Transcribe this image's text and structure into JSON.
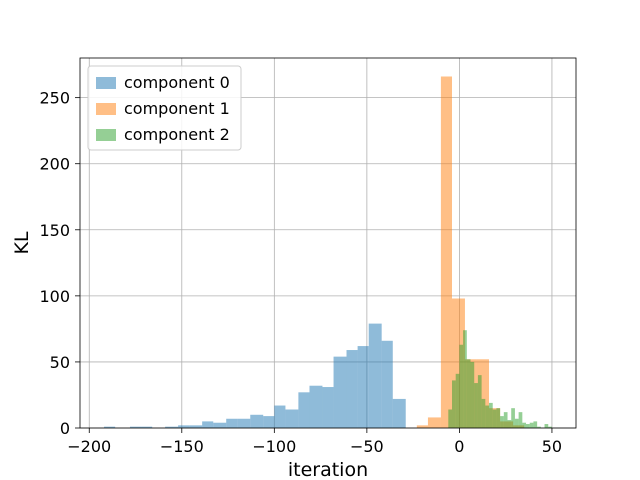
{
  "chart_data": {
    "type": "bar",
    "title": "",
    "xlabel": "iteration",
    "ylabel": "KL",
    "xlim": [
      -205,
      63
    ],
    "ylim": [
      0,
      280
    ],
    "xticks": [
      -200,
      -150,
      -100,
      -50,
      0,
      50
    ],
    "yticks": [
      0,
      50,
      100,
      150,
      200,
      250
    ],
    "xtick_labels": [
      "−200",
      "−150",
      "−100",
      "−50",
      "0",
      "50"
    ],
    "ytick_labels": [
      "0",
      "50",
      "100",
      "150",
      "200",
      "250"
    ],
    "grid": true,
    "legend_position": "top-left",
    "series": [
      {
        "name": "component 0",
        "color": "#1f77b4",
        "opacity": 0.5,
        "bins": [
          [
            -192,
            -186,
            1
          ],
          [
            -178,
            -172,
            1
          ],
          [
            -172,
            -166,
            1
          ],
          [
            -159,
            -152,
            1
          ],
          [
            -152,
            -146,
            2
          ],
          [
            -146,
            -139,
            2
          ],
          [
            -139,
            -133,
            5
          ],
          [
            -133,
            -126,
            4
          ],
          [
            -126,
            -120,
            7
          ],
          [
            -120,
            -113,
            7
          ],
          [
            -113,
            -106,
            10
          ],
          [
            -106,
            -100,
            9
          ],
          [
            -100,
            -94,
            17
          ],
          [
            -94,
            -87,
            14
          ],
          [
            -87,
            -81,
            27
          ],
          [
            -81,
            -74,
            32
          ],
          [
            -74,
            -68,
            31
          ],
          [
            -68,
            -61,
            54
          ],
          [
            -61,
            -55,
            59
          ],
          [
            -55,
            -49,
            62
          ],
          [
            -49,
            -42,
            79
          ],
          [
            -42,
            -36,
            66
          ],
          [
            -36,
            -29,
            22
          ]
        ]
      },
      {
        "name": "component 1",
        "color": "#ff7f0e",
        "opacity": 0.5,
        "bins": [
          [
            -23,
            -17,
            2
          ],
          [
            -17,
            -10,
            8
          ],
          [
            -10,
            -4,
            266
          ],
          [
            -4,
            3,
            98
          ],
          [
            3,
            9,
            52
          ],
          [
            9,
            16,
            52
          ],
          [
            16,
            22,
            15
          ],
          [
            22,
            29,
            5
          ],
          [
            29,
            35,
            2
          ]
        ]
      },
      {
        "name": "component 2",
        "color": "#2ca02c",
        "opacity": 0.5,
        "bins": [
          [
            -6,
            -4,
            14
          ],
          [
            -4,
            -2,
            36
          ],
          [
            -2,
            0,
            41
          ],
          [
            0,
            2,
            63
          ],
          [
            2,
            4,
            74
          ],
          [
            4,
            6,
            52
          ],
          [
            6,
            8,
            50
          ],
          [
            8,
            10,
            34
          ],
          [
            10,
            12,
            40
          ],
          [
            12,
            14,
            22
          ],
          [
            14,
            16,
            17
          ],
          [
            16,
            18,
            19
          ],
          [
            18,
            20,
            14
          ],
          [
            20,
            22,
            15
          ],
          [
            22,
            24,
            9
          ],
          [
            24,
            26,
            12
          ],
          [
            26,
            28,
            6
          ],
          [
            28,
            30,
            15
          ],
          [
            30,
            32,
            7
          ],
          [
            32,
            34,
            12
          ],
          [
            34,
            36,
            4
          ],
          [
            36,
            38,
            3
          ],
          [
            38,
            40,
            4
          ],
          [
            40,
            42,
            5
          ],
          [
            42,
            44,
            1
          ],
          [
            46,
            48,
            3
          ],
          [
            48,
            50,
            1
          ]
        ]
      }
    ]
  }
}
